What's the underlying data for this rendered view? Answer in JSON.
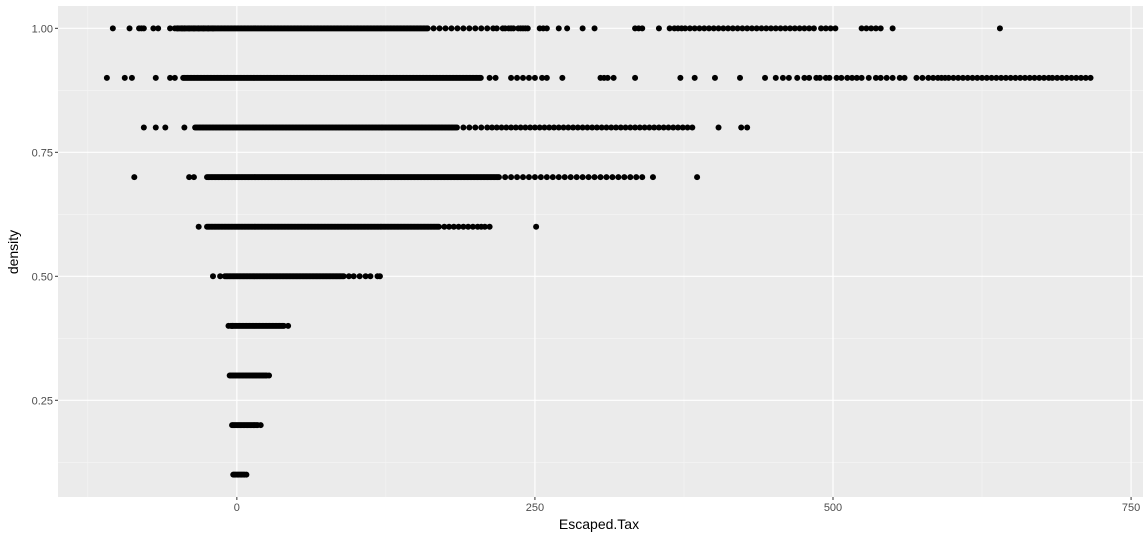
{
  "colors": {
    "panel": "#ebebeb",
    "grid_major": "#ffffff",
    "grid_minor": "#f5f5f5",
    "point": "#000000",
    "tick": "#333333"
  },
  "chart_data": {
    "type": "scatter",
    "title": "",
    "xlabel": "Escaped.Tax",
    "ylabel": "density",
    "xlim": [
      -150,
      760
    ],
    "ylim": [
      0.055,
      1.045
    ],
    "x_ticks": [
      0,
      250,
      500,
      750
    ],
    "y_ticks": [
      0.25,
      0.5,
      0.75,
      1.0
    ],
    "x_tick_labels": [
      "0",
      "250",
      "500",
      "750"
    ],
    "y_tick_labels": [
      "0.25",
      "0.50",
      "0.75",
      "1.00"
    ],
    "grid": true,
    "legend": "none",
    "series": [
      {
        "y": 1.0,
        "x_dense": [
          -50,
          160
        ],
        "x": [
          -104,
          -90,
          -82,
          -80,
          -78,
          -70,
          -66,
          -56,
          -52,
          -50,
          -46,
          -44,
          -40,
          -36,
          -32,
          -28,
          -24,
          -20,
          165,
          170,
          175,
          180,
          185,
          190,
          195,
          200,
          205,
          210,
          215,
          218,
          223,
          225,
          228,
          230,
          232,
          236,
          238,
          240,
          242,
          244,
          254,
          257,
          260,
          270,
          277,
          290,
          300,
          334,
          337,
          340,
          354,
          363,
          367,
          370,
          373,
          376,
          380,
          384,
          388,
          392,
          396,
          400,
          404,
          408,
          412,
          416,
          420,
          424,
          428,
          432,
          436,
          440,
          444,
          448,
          452,
          456,
          460,
          464,
          468,
          472,
          476,
          480,
          484,
          490,
          494,
          498,
          502,
          524,
          528,
          532,
          536,
          540,
          550,
          640
        ]
      },
      {
        "y": 0.9,
        "x_dense": [
          -45,
          205
        ],
        "x": [
          -109,
          -94,
          -88,
          -68,
          -56,
          -52,
          212,
          217,
          230,
          235,
          240,
          245,
          250,
          256,
          260,
          273,
          305,
          308,
          311,
          316,
          334,
          372,
          384,
          401,
          422,
          443,
          452,
          458,
          463,
          470,
          476,
          480,
          486,
          489,
          494,
          497,
          503,
          507,
          512,
          516,
          520,
          524,
          530,
          536,
          540,
          545,
          550,
          556,
          560,
          570,
          575,
          580,
          584,
          588,
          591,
          594,
          597,
          601,
          605,
          609,
          613,
          617,
          621,
          625,
          629,
          633,
          637,
          641,
          645,
          649,
          653,
          657,
          661,
          665,
          669,
          673,
          677,
          681,
          684,
          688,
          692,
          696,
          700,
          704,
          708,
          712,
          716
        ]
      },
      {
        "y": 0.8,
        "x_dense": [
          -35,
          185
        ],
        "x": [
          -78,
          -68,
          -60,
          -44,
          190,
          195,
          200,
          205,
          210,
          214,
          218,
          222,
          226,
          230,
          234,
          238,
          242,
          246,
          250,
          254,
          258,
          262,
          266,
          270,
          274,
          278,
          282,
          286,
          290,
          294,
          298,
          302,
          306,
          310,
          314,
          318,
          322,
          326,
          330,
          334,
          338,
          342,
          346,
          350,
          354,
          358,
          362,
          366,
          370,
          374,
          378,
          382,
          404,
          423,
          428
        ]
      },
      {
        "y": 0.7,
        "x_dense": [
          -25,
          220
        ],
        "x": [
          -86,
          -40,
          -36,
          225,
          230,
          235,
          240,
          245,
          250,
          255,
          260,
          265,
          270,
          275,
          280,
          285,
          290,
          295,
          300,
          305,
          310,
          315,
          320,
          325,
          330,
          335,
          340,
          349,
          386
        ]
      },
      {
        "y": 0.6,
        "x_dense": [
          -25,
          170
        ],
        "x": [
          -32,
          174,
          178,
          182,
          186,
          190,
          194,
          198,
          202,
          205,
          208,
          212,
          251
        ]
      },
      {
        "y": 0.5,
        "x_dense": [
          -10,
          90
        ],
        "x": [
          -20,
          -14,
          94,
          98,
          103,
          108,
          112,
          118,
          120
        ]
      },
      {
        "y": 0.4,
        "x_dense": [
          -5,
          40
        ],
        "x": [
          -7,
          -4,
          43
        ]
      },
      {
        "y": 0.3,
        "x_dense": [
          -5,
          25
        ],
        "x": [
          -6,
          27
        ]
      },
      {
        "y": 0.2,
        "x_dense": [
          -3,
          18
        ],
        "x": [
          -4,
          20
        ]
      },
      {
        "y": 0.1,
        "x_dense": [
          -2,
          7
        ],
        "x": [
          -3,
          8
        ]
      }
    ]
  }
}
